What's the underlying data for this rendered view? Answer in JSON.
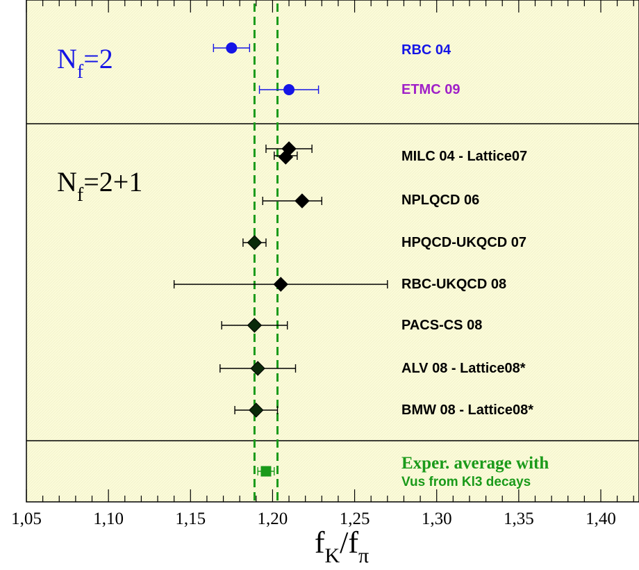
{
  "chart_data": {
    "type": "scatter",
    "xlabel_main": "f",
    "xlabel_sub1": "K",
    "xlabel_sep": "/f",
    "xlabel_sub2": "π",
    "xlim": [
      1.05,
      1.43
    ],
    "xticks": [
      "1,05",
      "1,10",
      "1,15",
      "1,20",
      "1,25",
      "1,30",
      "1,35",
      "1,40"
    ],
    "xtick_values": [
      1.05,
      1.1,
      1.15,
      1.2,
      1.25,
      1.3,
      1.35,
      1.4
    ],
    "band": {
      "low": 1.189,
      "high": 1.203,
      "color": "#1a9a1a",
      "style": "dashed"
    },
    "sections": [
      {
        "label_main": "N",
        "label_sub": "f",
        "label_rest": "=2",
        "color": "#1515e6"
      },
      {
        "label_main": "N",
        "label_sub": "f",
        "label_rest": "=2+1",
        "color": "#000000"
      }
    ],
    "points": [
      {
        "name": "RBC 04",
        "x": 1.175,
        "xerr_low": 0.011,
        "xerr_high": 0.011,
        "marker": "circle",
        "marker_color": "#1515e6",
        "label_color": "#1515e6",
        "section": 0
      },
      {
        "name": "ETMC 09",
        "x": 1.21,
        "xerr_low": 0.018,
        "xerr_high": 0.018,
        "marker": "circle",
        "marker_color": "#1515e6",
        "label_color": "#a020c8",
        "section": 0
      },
      {
        "name": "MILC 04 - Lattice07",
        "x": 1.21,
        "xerr_low": 0.014,
        "xerr_high": 0.014,
        "marker": "diamond",
        "marker_color": "#000000",
        "label_color": "#000000",
        "section": 1,
        "second_x": 1.208,
        "second_xerr_low": 0.007,
        "second_xerr_high": 0.007
      },
      {
        "name": "NPLQCD 06",
        "x": 1.218,
        "xerr_low": 0.024,
        "xerr_high": 0.012,
        "marker": "diamond",
        "marker_color": "#000000",
        "label_color": "#000000",
        "section": 1
      },
      {
        "name": "HPQCD-UKQCD 07",
        "x": 1.189,
        "xerr_low": 0.007,
        "xerr_high": 0.007,
        "marker": "diamond",
        "marker_color": "#0a2a0a",
        "label_color": "#000000",
        "section": 1
      },
      {
        "name": "RBC-UKQCD 08",
        "x": 1.205,
        "xerr_low": 0.065,
        "xerr_high": 0.065,
        "marker": "diamond",
        "marker_color": "#000000",
        "label_color": "#000000",
        "section": 1
      },
      {
        "name": "PACS-CS 08",
        "x": 1.189,
        "xerr_low": 0.02,
        "xerr_high": 0.02,
        "marker": "diamond",
        "marker_color": "#0a2a0a",
        "label_color": "#000000",
        "section": 1
      },
      {
        "name": "ALV 08 - Lattice08*",
        "x": 1.191,
        "xerr_low": 0.023,
        "xerr_high": 0.023,
        "marker": "diamond",
        "marker_color": "#0a2a0a",
        "label_color": "#000000",
        "section": 1
      },
      {
        "name": "BMW 08 - Lattice08*",
        "x": 1.19,
        "xerr_low": 0.013,
        "xerr_high": 0.013,
        "marker": "diamond",
        "marker_color": "#0a2a0a",
        "label_color": "#000000",
        "section": 1
      }
    ],
    "experiment": {
      "label_line1": "Exper. average with",
      "label_line2": "Vus from Kl3 decays",
      "x": 1.196,
      "xerr_low": 0.005,
      "xerr_high": 0.005,
      "marker": "square",
      "color": "#1a9a1a"
    },
    "background_color": "#fbfbd9"
  }
}
